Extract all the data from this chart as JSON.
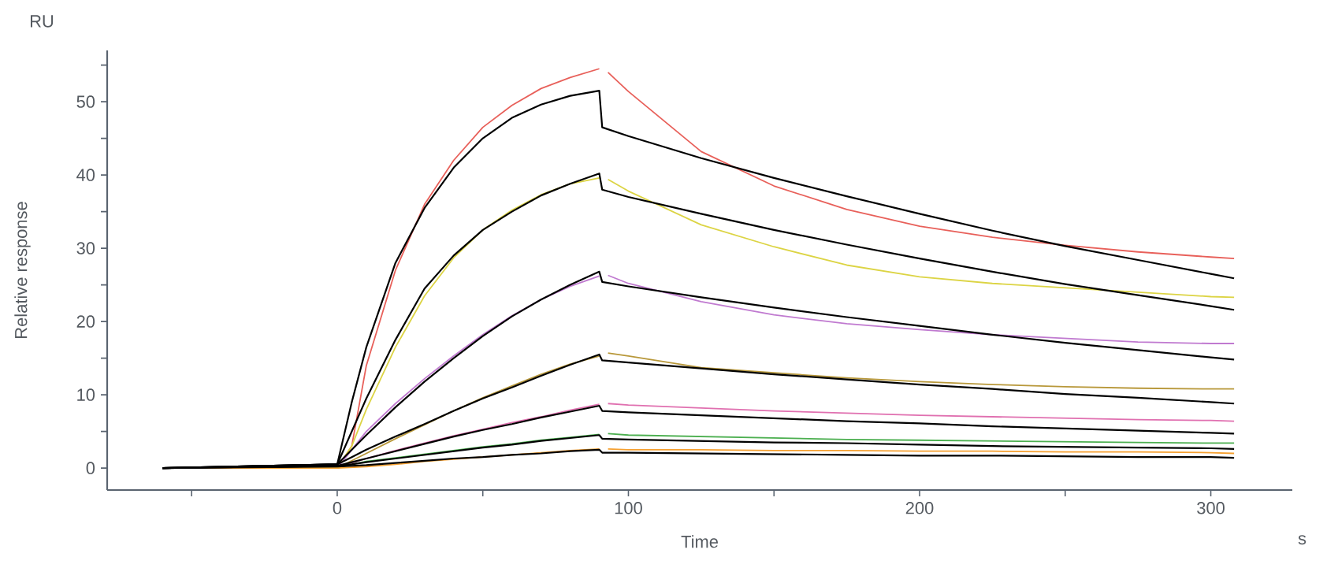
{
  "chart_data": {
    "type": "line",
    "xlabel": "Time",
    "ylabel": "Relative response",
    "annotations": [
      "RU",
      "s"
    ],
    "xlim": [
      -79,
      328
    ],
    "ylim": [
      -3,
      57
    ],
    "xticks": [
      {
        "value": -50,
        "label": null
      },
      0,
      {
        "value": 50,
        "label": null
      },
      100,
      {
        "value": 150,
        "label": null
      },
      200,
      {
        "value": 250,
        "label": null
      },
      300
    ],
    "yticks": [
      0,
      {
        "value": 5,
        "label": null
      },
      10,
      {
        "value": 15,
        "label": null
      },
      20,
      {
        "value": 25,
        "label": null
      },
      30,
      {
        "value": 35,
        "label": null
      },
      40,
      {
        "value": 45,
        "label": null
      },
      50,
      {
        "value": 55,
        "label": null
      }
    ],
    "marker": "none",
    "line_style": "solid",
    "series": [
      {
        "color": "#e8605a",
        "x": [
          -60,
          0,
          5,
          10,
          20,
          30,
          40,
          50,
          60,
          70,
          80,
          90,
          91,
          93,
          100,
          125,
          150,
          175,
          200,
          225,
          250,
          275,
          300,
          308
        ],
        "values": [
          0,
          0,
          3,
          14,
          27,
          36,
          42,
          46.5,
          49.5,
          51.8,
          53.3,
          54.5,
          null,
          54,
          51.4,
          43.2,
          38.5,
          35.3,
          33,
          31.5,
          30.4,
          29.5,
          28.8,
          28.6
        ]
      },
      {
        "color": "#dcd444",
        "x": [
          -60,
          0,
          5,
          10,
          20,
          30,
          40,
          50,
          60,
          70,
          80,
          90,
          91,
          93,
          100,
          125,
          150,
          175,
          200,
          225,
          250,
          275,
          300,
          308
        ],
        "values": [
          0,
          0,
          3,
          8,
          16.5,
          23.5,
          28.7,
          32.5,
          35.2,
          37.3,
          38.8,
          39.6,
          null,
          39.4,
          37.8,
          33.2,
          30.2,
          27.7,
          26.1,
          25.2,
          24.6,
          24,
          23.4,
          23.3
        ]
      },
      {
        "color": "#c07ad0",
        "x": [
          -60,
          0,
          5,
          10,
          20,
          30,
          40,
          50,
          60,
          70,
          80,
          90,
          91,
          93,
          100,
          125,
          150,
          175,
          200,
          225,
          250,
          275,
          300,
          308
        ],
        "values": [
          0,
          0,
          2.5,
          5,
          8.8,
          12.2,
          15.3,
          18.2,
          20.8,
          23,
          24.8,
          26.2,
          null,
          26.3,
          25.2,
          22.7,
          20.9,
          19.7,
          18.9,
          18.2,
          17.7,
          17.2,
          17,
          17
        ]
      },
      {
        "color": "#b8983a",
        "x": [
          -60,
          0,
          5,
          10,
          20,
          30,
          40,
          50,
          60,
          70,
          80,
          90,
          91,
          93,
          100,
          125,
          150,
          175,
          200,
          225,
          250,
          275,
          300,
          308
        ],
        "values": [
          0,
          0,
          1,
          2,
          4,
          5.9,
          7.8,
          9.6,
          11.2,
          12.8,
          14.2,
          15.3,
          null,
          15.7,
          15.3,
          13.7,
          13,
          12.3,
          11.8,
          11.4,
          11.1,
          10.9,
          10.8,
          10.8
        ]
      },
      {
        "color": "#e070b0",
        "x": [
          -60,
          0,
          5,
          10,
          20,
          30,
          40,
          50,
          60,
          70,
          80,
          90,
          91,
          93,
          100,
          125,
          150,
          175,
          200,
          225,
          250,
          275,
          300,
          308
        ],
        "values": [
          0,
          0,
          0.7,
          1.3,
          2.4,
          3.4,
          4.4,
          5.3,
          6.2,
          7,
          7.9,
          8.7,
          null,
          8.8,
          8.6,
          8.2,
          7.8,
          7.5,
          7.2,
          7,
          6.8,
          6.6,
          6.5,
          6.4
        ]
      },
      {
        "color": "#4caf50",
        "x": [
          -60,
          0,
          5,
          10,
          20,
          30,
          40,
          50,
          60,
          70,
          80,
          90,
          91,
          93,
          100,
          125,
          150,
          175,
          200,
          225,
          250,
          275,
          300,
          308
        ],
        "values": [
          0,
          0,
          0.5,
          0.9,
          1.4,
          1.9,
          2.4,
          2.9,
          3.3,
          3.8,
          4.2,
          4.6,
          null,
          4.7,
          4.5,
          4.3,
          4.1,
          3.9,
          3.8,
          3.7,
          3.6,
          3.5,
          3.4,
          3.4
        ]
      },
      {
        "color": "#f5a030",
        "x": [
          -60,
          0,
          5,
          10,
          20,
          30,
          40,
          50,
          60,
          70,
          80,
          90,
          91,
          93,
          100,
          125,
          150,
          175,
          200,
          225,
          250,
          275,
          300,
          308
        ],
        "values": [
          0,
          0,
          0.1,
          0.2,
          0.5,
          0.9,
          1.2,
          1.5,
          1.8,
          2.1,
          2.4,
          2.6,
          null,
          2.6,
          2.5,
          2.5,
          2.4,
          2.4,
          2.3,
          2.3,
          2.2,
          2.2,
          2.1,
          2.0
        ]
      },
      {
        "color": "#000000",
        "x": [
          -60,
          0,
          5,
          10,
          20,
          30,
          40,
          50,
          60,
          70,
          80,
          90,
          91,
          100,
          125,
          150,
          175,
          200,
          225,
          250,
          275,
          300,
          308
        ],
        "values": [
          0,
          0.5,
          9,
          16.5,
          28,
          35.5,
          41,
          45,
          47.8,
          49.6,
          50.8,
          51.5,
          46.5,
          45.3,
          42.3,
          39.6,
          37.1,
          34.7,
          32.4,
          30.3,
          28.4,
          26.5,
          25.9
        ]
      },
      {
        "color": "#000000",
        "x": [
          -60,
          0,
          5,
          10,
          20,
          30,
          40,
          50,
          60,
          70,
          80,
          90,
          91,
          100,
          125,
          150,
          175,
          200,
          225,
          250,
          275,
          300,
          308
        ],
        "values": [
          0,
          0.5,
          5,
          9.5,
          17.5,
          24.5,
          29,
          32.5,
          35,
          37.2,
          38.8,
          40.2,
          38,
          37,
          34.7,
          32.5,
          30.5,
          28.6,
          26.8,
          25.1,
          23.6,
          22.1,
          21.6
        ]
      },
      {
        "color": "#000000",
        "x": [
          -60,
          0,
          5,
          10,
          20,
          30,
          40,
          50,
          60,
          70,
          80,
          90,
          91,
          100,
          125,
          150,
          175,
          200,
          225,
          250,
          275,
          300,
          308
        ],
        "values": [
          0,
          0.5,
          2.5,
          4.5,
          8.3,
          11.8,
          15,
          18,
          20.7,
          23,
          25,
          26.8,
          25.4,
          24.8,
          23.3,
          21.9,
          20.6,
          19.4,
          18.2,
          17.1,
          16.1,
          15.1,
          14.8
        ]
      },
      {
        "color": "#000000",
        "x": [
          -60,
          0,
          5,
          10,
          20,
          30,
          40,
          50,
          60,
          70,
          80,
          90,
          91,
          100,
          125,
          150,
          175,
          200,
          225,
          250,
          275,
          300,
          308
        ],
        "values": [
          0,
          0.5,
          1.5,
          2.5,
          4.3,
          6,
          7.8,
          9.5,
          11,
          12.6,
          14.1,
          15.5,
          14.7,
          14.4,
          13.6,
          12.8,
          12.1,
          11.4,
          10.8,
          10.1,
          9.6,
          9.0,
          8.8
        ]
      },
      {
        "color": "#000000",
        "x": [
          -60,
          0,
          5,
          10,
          20,
          30,
          40,
          50,
          60,
          70,
          80,
          90,
          91,
          100,
          125,
          150,
          175,
          200,
          225,
          250,
          275,
          300,
          308
        ],
        "values": [
          0,
          0.3,
          0.8,
          1.3,
          2.3,
          3.3,
          4.3,
          5.2,
          6,
          6.9,
          7.7,
          8.5,
          7.8,
          7.6,
          7.2,
          6.8,
          6.4,
          6.1,
          5.7,
          5.4,
          5.1,
          4.8,
          4.7
        ]
      },
      {
        "color": "#000000",
        "x": [
          -60,
          0,
          5,
          10,
          20,
          30,
          40,
          50,
          60,
          70,
          80,
          90,
          91,
          100,
          125,
          150,
          175,
          200,
          225,
          250,
          275,
          300,
          308
        ],
        "values": [
          0,
          0.3,
          0.5,
          0.8,
          1.3,
          1.8,
          2.3,
          2.8,
          3.2,
          3.7,
          4.1,
          4.5,
          4,
          3.9,
          3.7,
          3.5,
          3.4,
          3.2,
          3,
          2.9,
          2.8,
          2.7,
          2.6
        ]
      },
      {
        "color": "#000000",
        "x": [
          -60,
          0,
          5,
          10,
          20,
          30,
          40,
          50,
          60,
          70,
          80,
          90,
          91,
          100,
          125,
          150,
          175,
          200,
          225,
          250,
          275,
          300,
          308
        ],
        "values": [
          0,
          0.2,
          0.3,
          0.4,
          0.7,
          1,
          1.3,
          1.5,
          1.8,
          2,
          2.3,
          2.5,
          2.1,
          2.1,
          2,
          1.9,
          1.8,
          1.7,
          1.7,
          1.6,
          1.5,
          1.5,
          1.4
        ]
      }
    ]
  }
}
